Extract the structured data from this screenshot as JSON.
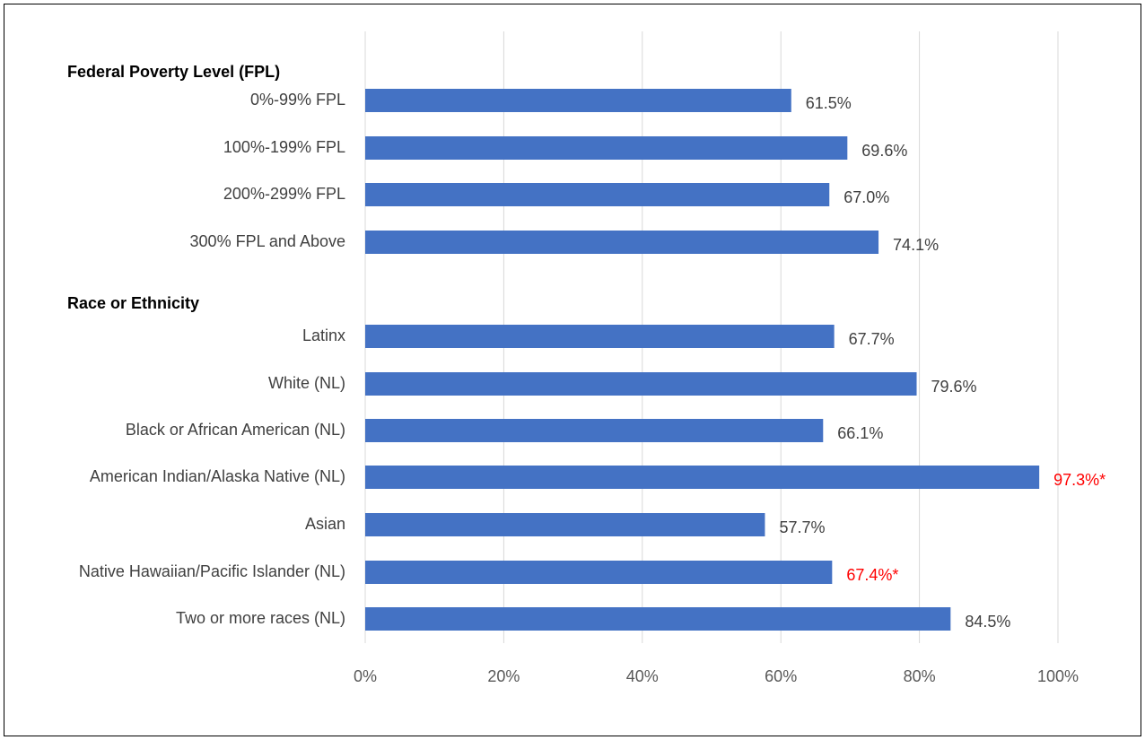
{
  "chart_data": {
    "type": "bar",
    "orientation": "horizontal",
    "title": "",
    "xlabel": "",
    "ylabel": "",
    "xlim": [
      0,
      100
    ],
    "x_ticks": [
      "0%",
      "20%",
      "40%",
      "60%",
      "80%",
      "100%"
    ],
    "grid": "vertical",
    "legend": "none",
    "bar_color": "#4472C4",
    "label_color": "#404040",
    "flag_color": "#FF0000",
    "groups": [
      {
        "label": "Federal Poverty Level (FPL)",
        "items": [
          {
            "category": "0%-99% FPL",
            "value": 61.5,
            "value_label": "61.5%",
            "flagged": false
          },
          {
            "category": "100%-199% FPL",
            "value": 69.6,
            "value_label": "69.6%",
            "flagged": false
          },
          {
            "category": "200%-299% FPL",
            "value": 67.0,
            "value_label": "67.0%",
            "flagged": false
          },
          {
            "category": "300% FPL and Above",
            "value": 74.1,
            "value_label": "74.1%",
            "flagged": false
          }
        ]
      },
      {
        "label": "Race or Ethnicity",
        "items": [
          {
            "category": "Latinx",
            "value": 67.7,
            "value_label": "67.7%",
            "flagged": false
          },
          {
            "category": "White (NL)",
            "value": 79.6,
            "value_label": "79.6%",
            "flagged": false
          },
          {
            "category": "Black or African American (NL)",
            "value": 66.1,
            "value_label": "66.1%",
            "flagged": false
          },
          {
            "category": "American Indian/Alaska Native (NL)",
            "value": 97.3,
            "value_label": "97.3%*",
            "flagged": true
          },
          {
            "category": "Asian",
            "value": 57.7,
            "value_label": "57.7%",
            "flagged": false
          },
          {
            "category": "Native Hawaiian/Pacific Islander (NL)",
            "value": 67.4,
            "value_label": "67.4%*",
            "flagged": true
          },
          {
            "category": "Two or more races (NL)",
            "value": 84.5,
            "value_label": "84.5%",
            "flagged": false
          }
        ]
      }
    ]
  }
}
